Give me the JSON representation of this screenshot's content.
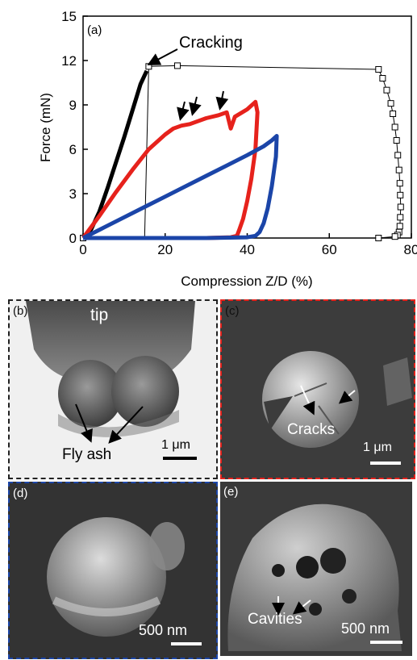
{
  "chart_data": {
    "type": "line",
    "panel_label": "(a)",
    "xlabel": "Compression Z/D (%)",
    "ylabel": "Force (mN)",
    "xlim": [
      0,
      80
    ],
    "ylim": [
      0,
      15
    ],
    "xticks": [
      "0",
      "20",
      "40",
      "60",
      "80"
    ],
    "yticks": [
      "0",
      "3",
      "6",
      "9",
      "12",
      "15"
    ],
    "annotation": "Cracking",
    "series": [
      {
        "color": "#000000",
        "style": "thick",
        "x": [
          0,
          2,
          4,
          6,
          8,
          10,
          12,
          14,
          15.5
        ],
        "y": [
          0,
          0.6,
          1.8,
          3.4,
          5.1,
          6.8,
          8.6,
          10.4,
          11.3
        ]
      },
      {
        "color": "#000000",
        "style": "open-square-markers",
        "x": [
          0,
          4,
          8,
          12,
          15,
          16,
          23,
          72,
          73,
          74,
          75,
          75.5,
          76,
          76.4,
          76.7,
          77,
          77.2,
          77.3,
          77.4,
          77.3,
          77.2,
          77,
          76.6,
          76,
          72,
          0
        ],
        "y": [
          0,
          0,
          0,
          0,
          0,
          11.6,
          11.65,
          11.4,
          10.8,
          10.0,
          9.1,
          8.4,
          7.5,
          6.6,
          5.6,
          4.6,
          3.7,
          2.9,
          2.1,
          1.4,
          0.8,
          0.4,
          0.2,
          0.1,
          0,
          0
        ]
      },
      {
        "color": "#e6221c",
        "style": "thick",
        "x": [
          0,
          4,
          8,
          12,
          16,
          20,
          22,
          24,
          26,
          28,
          30,
          33,
          35,
          36,
          37,
          40,
          42,
          42.5,
          42,
          41,
          40,
          39,
          38,
          37.5,
          36,
          30,
          20,
          10,
          4,
          0
        ],
        "y": [
          0,
          1.5,
          3.1,
          4.6,
          6.0,
          7.0,
          7.4,
          7.6,
          7.7,
          7.9,
          8.1,
          8.3,
          8.5,
          7.4,
          8.2,
          8.7,
          9.2,
          8.5,
          6.0,
          4.0,
          2.5,
          1.3,
          0.5,
          0.15,
          0.05,
          0,
          0,
          0,
          0,
          0
        ]
      },
      {
        "color": "#1b45a8",
        "style": "thick",
        "x": [
          0,
          5,
          10,
          15,
          20,
          25,
          30,
          35,
          40,
          44,
          46,
          47.2,
          47,
          46,
          45,
          44,
          43,
          42,
          40,
          30,
          20,
          10,
          0
        ],
        "y": [
          0,
          0.7,
          1.4,
          2.1,
          2.8,
          3.5,
          4.2,
          4.9,
          5.6,
          6.2,
          6.6,
          6.9,
          5.5,
          3.5,
          2.0,
          1.0,
          0.4,
          0.15,
          0.05,
          0,
          0,
          0,
          0
        ]
      }
    ]
  },
  "panels": {
    "b": {
      "label": "(b)",
      "tip_label": "tip",
      "annotation": "Fly ash",
      "scale_bar": "1 μm",
      "border_color": "#222222"
    },
    "c": {
      "label": "(c)",
      "annotation": "Cracks",
      "scale_bar": "1 μm",
      "border_color": "#e6221c"
    },
    "d": {
      "label": "(d)",
      "scale_bar": "500 nm",
      "border_color": "#1b45a8"
    },
    "e": {
      "label": "(e)",
      "annotation": "Cavities",
      "scale_bar": "500 nm"
    }
  }
}
